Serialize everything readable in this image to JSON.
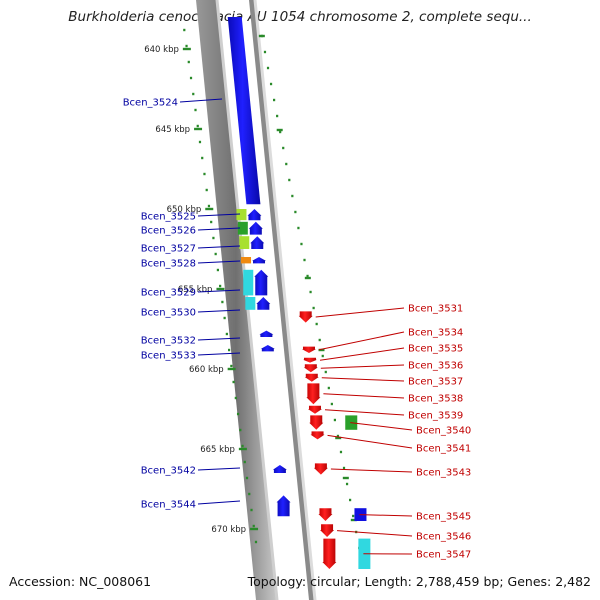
{
  "title": "Burkholderia cenocepacia AU 1054 chromosome 2, complete sequ...",
  "accession_text": "Accession: NC_008061",
  "summary_text": "Topology: circular; Length: 2,788,459 bp; Genes: 2,482",
  "colors": {
    "forward": "#1010e0",
    "reverse": "#e01010",
    "forward_label": "#0000a0",
    "reverse_label": "#c00000",
    "tick": "#2a8a2a",
    "backbone_dark": "#7a7a7a",
    "backbone_light": "#cfcfcf",
    "cog_lime": "#a8e030",
    "cog_green": "#2aa02a",
    "cog_orange": "#f08a10",
    "cog_cyan": "#30d8e0"
  },
  "scale_ticks": [
    {
      "kbp": 640,
      "label": "640 kbp"
    },
    {
      "kbp": 645,
      "label": "645 kbp"
    },
    {
      "kbp": 650,
      "label": "650 kbp"
    },
    {
      "kbp": 655,
      "label": "655 kbp"
    },
    {
      "kbp": 660,
      "label": "660 kbp"
    },
    {
      "kbp": 665,
      "label": "665 kbp"
    },
    {
      "kbp": 670,
      "label": "670 kbp"
    }
  ],
  "genes_forward": [
    {
      "name": "Bcen_3524",
      "start": 638.0,
      "end": 649.7,
      "cog": "none"
    },
    {
      "name": "Bcen_3525",
      "start": 650.0,
      "end": 650.7,
      "cog": "lime"
    },
    {
      "name": "Bcen_3526",
      "start": 650.8,
      "end": 651.6,
      "cog": "green"
    },
    {
      "name": "Bcen_3527",
      "start": 651.7,
      "end": 652.5,
      "cog": "lime"
    },
    {
      "name": "Bcen_3528",
      "start": 653.0,
      "end": 653.4,
      "cog": "orange"
    },
    {
      "name": "Bcen_3529",
      "start": 653.8,
      "end": 655.4,
      "cog": "cyan"
    },
    {
      "name": "Bcen_3530",
      "start": 655.5,
      "end": 656.3,
      "cog": "cyan"
    },
    {
      "name": "Bcen_3532",
      "start": 657.6,
      "end": 658.0,
      "cog": "none"
    },
    {
      "name": "Bcen_3533",
      "start": 658.5,
      "end": 658.9,
      "cog": "none"
    },
    {
      "name": "Bcen_3542",
      "start": 666.0,
      "end": 666.5,
      "cog": "none"
    },
    {
      "name": "Bcen_3544",
      "start": 667.9,
      "end": 669.2,
      "cog": "none"
    }
  ],
  "genes_reverse": [
    {
      "name": "Bcen_3531",
      "start": 656.4,
      "end": 657.1,
      "cog": "none"
    },
    {
      "name": "Bcen_3534",
      "start": 658.6,
      "end": 659.0,
      "cog": "none"
    },
    {
      "name": "Bcen_3535",
      "start": 659.3,
      "end": 659.6,
      "cog": "none"
    },
    {
      "name": "Bcen_3536",
      "start": 659.7,
      "end": 660.2,
      "cog": "none"
    },
    {
      "name": "Bcen_3537",
      "start": 660.3,
      "end": 660.8,
      "cog": "none"
    },
    {
      "name": "Bcen_3538",
      "start": 660.9,
      "end": 662.2,
      "cog": "none"
    },
    {
      "name": "Bcen_3539",
      "start": 662.3,
      "end": 662.8,
      "cog": "none"
    },
    {
      "name": "Bcen_3540",
      "start": 662.9,
      "end": 663.8,
      "cog": "green"
    },
    {
      "name": "Bcen_3541",
      "start": 663.9,
      "end": 664.4,
      "cog": "none"
    },
    {
      "name": "Bcen_3543",
      "start": 665.9,
      "end": 666.6,
      "cog": "none"
    },
    {
      "name": "Bcen_3545",
      "start": 668.7,
      "end": 669.5,
      "cog": "forward"
    },
    {
      "name": "Bcen_3546",
      "start": 669.7,
      "end": 670.5,
      "cog": "none"
    },
    {
      "name": "Bcen_3547",
      "start": 670.6,
      "end": 672.5,
      "cog": "cyan"
    }
  ]
}
